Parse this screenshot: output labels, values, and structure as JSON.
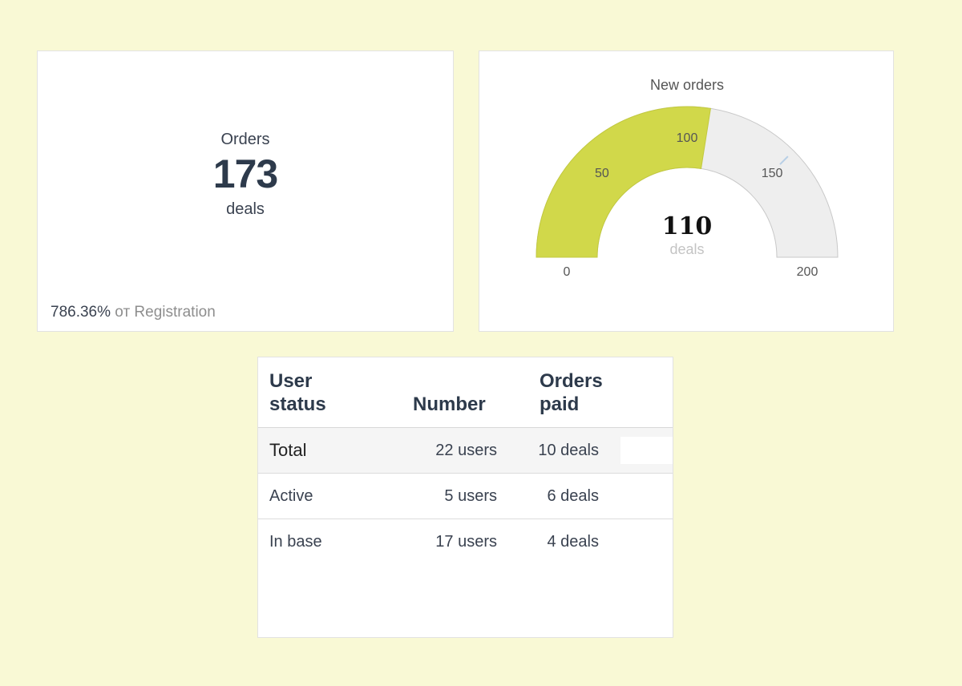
{
  "orders_card": {
    "title": "Orders",
    "value": "173",
    "unit": "deals",
    "footer_percent": "786.36%",
    "footer_text": "от Registration"
  },
  "gauge_card": {
    "title": "New orders",
    "value": "110",
    "unit": "deals",
    "min": 0,
    "max": 200,
    "fill_value": 110,
    "tick_labels": [
      "0",
      "50",
      "100",
      "150",
      "200"
    ],
    "fill_color": "#d1d84a",
    "track_color": "#eeeeee"
  },
  "table": {
    "headers": {
      "status_line1": "User",
      "status_line2": "status",
      "number": "Number",
      "paid_line1": "Orders",
      "paid_line2": "paid"
    },
    "rows": [
      {
        "status": "Total",
        "number": "22 users",
        "paid": "10 deals"
      },
      {
        "status": "Active",
        "number": "5 users",
        "paid": "6 deals"
      },
      {
        "status": "In base",
        "number": "17 users",
        "paid": "4 deals"
      }
    ]
  }
}
